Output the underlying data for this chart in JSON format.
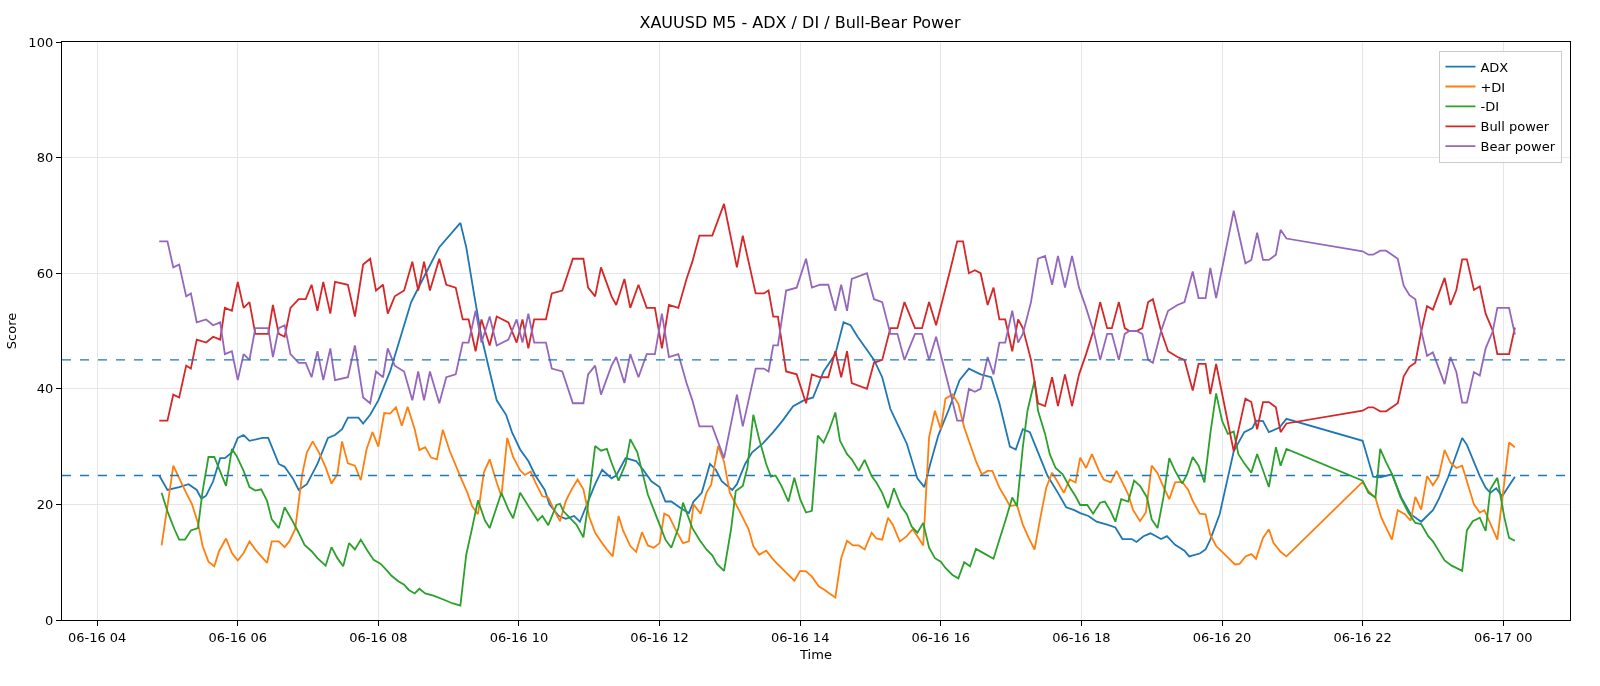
{
  "chart_data": {
    "type": "line",
    "title": "XAUUSD M5 - ADX / DI / Bull-Bear Power",
    "xlabel": "Time",
    "ylabel": "Score",
    "xlim": [
      "--06-16T03:30",
      "--06-17T00:57"
    ],
    "xticks": [
      {
        "value": "--06-16T04:00",
        "label": "06-16 04"
      },
      {
        "value": "--06-16T06:00",
        "label": "06-16 06"
      },
      {
        "value": "--06-16T08:00",
        "label": "06-16 08"
      },
      {
        "value": "--06-16T10:00",
        "label": "06-16 10"
      },
      {
        "value": "--06-16T12:00",
        "label": "06-16 12"
      },
      {
        "value": "--06-16T14:00",
        "label": "06-16 14"
      },
      {
        "value": "--06-16T16:00",
        "label": "06-16 16"
      },
      {
        "value": "--06-16T18:00",
        "label": "06-16 18"
      },
      {
        "value": "--06-16T20:00",
        "label": "06-16 20"
      },
      {
        "value": "--06-16T22:00",
        "label": "06-16 22"
      },
      {
        "value": "--06-17T00:00",
        "label": "06-17 00"
      }
    ],
    "ylim": [
      0,
      100
    ],
    "yticks": [
      0,
      20,
      40,
      60,
      80,
      100
    ],
    "grid": true,
    "legend": "top right",
    "ref_lines": [
      {
        "axis": "y",
        "value": 45,
        "color": "#1f77b4",
        "line_style": "dashed"
      },
      {
        "axis": "y",
        "value": 25,
        "color": "#1f77b4",
        "line_style": "dashed"
      }
    ],
    "x": [
      "--06-16T04:53",
      "--06-16T05:00",
      "--06-16T05:05",
      "--06-16T05:10",
      "--06-16T05:16",
      "--06-16T05:20",
      "--06-16T05:25",
      "--06-16T05:33",
      "--06-16T05:39",
      "--06-16T05:45",
      "--06-16T05:49",
      "--06-16T05:55",
      "--06-16T06:00",
      "--06-16T06:05",
      "--06-16T06:10",
      "--06-16T06:15",
      "--06-16T06:26",
      "--06-16T06:30",
      "--06-16T06:35",
      "--06-16T06:40",
      "--06-16T06:45",
      "--06-16T06:52",
      "--06-16T06:58",
      "--06-16T07:03",
      "--06-16T07:08",
      "--06-16T07:13",
      "--06-16T07:19",
      "--06-16T07:23",
      "--06-16T07:34",
      "--06-16T07:40",
      "--06-16T07:47",
      "--06-16T07:53",
      "--06-16T07:58",
      "--06-16T08:04",
      "--06-16T08:08",
      "--06-16T08:14",
      "--06-16T08:22",
      "--06-16T08:29",
      "--06-16T08:34",
      "--06-16T08:39",
      "--06-16T08:44",
      "--06-16T08:52",
      "--06-16T08:58",
      "--06-16T09:06",
      "--06-16T09:12",
      "--06-16T09:17",
      "--06-16T09:23",
      "--06-16T09:28",
      "--06-16T09:35",
      "--06-16T09:41",
      "--06-16T09:51",
      "--06-16T09:58",
      "--06-16T10:03",
      "--06-16T10:08",
      "--06-16T10:13",
      "--06-16T10:23",
      "--06-16T10:28",
      "--06-16T10:37",
      "--06-16T10:46",
      "--06-16T10:55",
      "--06-16T10:59",
      "--06-16T11:05",
      "--06-16T11:10",
      "--06-16T11:19",
      "--06-16T11:23",
      "--06-16T11:30",
      "--06-16T11:35",
      "--06-16T11:42",
      "--06-16T11:49",
      "--06-16T11:56",
      "--06-16T12:02",
      "--06-16T12:08",
      "--06-16T12:16",
      "--06-16T12:23",
      "--06-16T12:28",
      "--06-16T12:34",
      "--06-16T12:45",
      "--06-16T12:55",
      "--06-16T13:06",
      "--06-16T13:11",
      "--06-16T13:22",
      "--06-16T13:29",
      "--06-16T13:33",
      "--06-16T13:37",
      "--06-16T13:41",
      "--06-16T13:48",
      "--06-16T13:57",
      "--06-16T14:05",
      "--06-16T14:10",
      "--06-16T14:17",
      "--06-16T14:24",
      "--06-16T14:30",
      "--06-16T14:35",
      "--06-16T14:40",
      "--06-16T14:44",
      "--06-16T14:57",
      "--06-16T15:03",
      "--06-16T15:10",
      "--06-16T15:17",
      "--06-16T15:23",
      "--06-16T15:29",
      "--06-16T15:38",
      "--06-16T15:44",
      "--06-16T15:50",
      "--06-16T15:56",
      "--06-16T16:08",
      "--06-16T16:14",
      "--06-16T16:19",
      "--06-16T16:24",
      "--06-16T16:29",
      "--06-16T16:34",
      "--06-16T16:40",
      "--06-16T16:45",
      "--06-16T16:50",
      "--06-16T16:55",
      "--06-16T17:01",
      "--06-16T17:06",
      "--06-16T17:10",
      "--06-16T17:17",
      "--06-16T17:23",
      "--06-16T17:29",
      "--06-16T17:35",
      "--06-16T17:40",
      "--06-16T17:46",
      "--06-16T17:52",
      "--06-16T17:58",
      "--06-16T18:04",
      "--06-16T18:11",
      "--06-16T18:16",
      "--06-16T18:22",
      "--06-16T18:26",
      "--06-16T18:32",
      "--06-16T18:37",
      "--06-16T18:41",
      "--06-16T18:47",
      "--06-16T18:52",
      "--06-16T18:57",
      "--06-16T19:01",
      "--06-16T19:08",
      "--06-16T19:14",
      "--06-16T19:22",
      "--06-16T19:28",
      "--06-16T19:35",
      "--06-16T19:40",
      "--06-16T19:46",
      "--06-16T19:50",
      "--06-16T19:55",
      "--06-16T20:10",
      "--06-16T20:20",
      "--06-16T20:25",
      "--06-16T20:30",
      "--06-16T20:35",
      "--06-16T20:40",
      "--06-16T20:46",
      "--06-16T20:50",
      "--06-16T20:55",
      "--06-16T22:00",
      "--06-16T22:05",
      "--06-16T22:09",
      "--06-16T22:15",
      "--06-16T22:20",
      "--06-16T22:30",
      "--06-16T22:35",
      "--06-16T22:40",
      "--06-16T22:45",
      "--06-16T22:50",
      "--06-16T22:55",
      "--06-16T23:00",
      "--06-16T23:10",
      "--06-16T23:15",
      "--06-16T23:20",
      "--06-16T23:25",
      "--06-16T23:29",
      "--06-16T23:35",
      "--06-16T23:40",
      "--06-16T23:45",
      "--06-16T23:51",
      "--06-16T23:55",
      "--06-17T00:05",
      "--06-17T00:10"
    ],
    "series": [
      {
        "name": "ADX",
        "color": "#1f77b4",
        "x": [
          "--06-16T04:53",
          "--06-16T05:00",
          "--06-16T05:10",
          "--06-16T05:18",
          "--06-16T05:25",
          "--06-16T05:29",
          "--06-16T05:33",
          "--06-16T05:39",
          "--06-16T05:45",
          "--06-16T05:49",
          "--06-16T05:55",
          "--06-16T06:00",
          "--06-16T06:05",
          "--06-16T06:10",
          "--06-16T06:21",
          "--06-16T06:26",
          "--06-16T06:35",
          "--06-16T06:40",
          "--06-16T06:47",
          "--06-16T06:52",
          "--06-16T06:59",
          "--06-16T07:08",
          "--06-16T07:17",
          "--06-16T07:23",
          "--06-16T07:29",
          "--06-16T07:34",
          "--06-16T07:43",
          "--06-16T07:47",
          "--06-16T07:53",
          "--06-16T08:00",
          "--06-16T08:10",
          "--06-16T08:19",
          "--06-16T08:28",
          "--06-16T08:38",
          "--06-16T08:52",
          "--06-16T09:10",
          "--06-16T09:15",
          "--06-16T09:22",
          "--06-16T09:28",
          "--06-16T09:35",
          "--06-16T09:41",
          "--06-16T09:49",
          "--06-16T09:54",
          "--06-16T10:01",
          "--06-16T10:08",
          "--06-16T10:14",
          "--06-16T10:22",
          "--06-16T10:26",
          "--06-16T10:34",
          "--06-16T10:40",
          "--06-16T10:47",
          "--06-16T10:52",
          "--06-16T10:58",
          "--06-16T11:05",
          "--06-16T11:11",
          "--06-16T11:19",
          "--06-16T11:23",
          "--06-16T11:31",
          "--06-16T11:40",
          "--06-16T11:46",
          "--06-16T11:53",
          "--06-16T12:00",
          "--06-16T12:05",
          "--06-16T12:10",
          "--06-16T12:17",
          "--06-16T12:25",
          "--06-16T12:29",
          "--06-16T12:36",
          "--06-16T12:43",
          "--06-16T12:48",
          "--06-16T12:53",
          "--06-16T13:02",
          "--06-16T13:06",
          "--06-16T13:13",
          "--06-16T13:19",
          "--06-16T13:28",
          "--06-16T13:37",
          "--06-16T13:45",
          "--06-16T13:54",
          "--06-16T14:03",
          "--06-16T14:11",
          "--06-16T14:20",
          "--06-16T14:30",
          "--06-16T14:37",
          "--06-16T14:43",
          "--06-16T14:49",
          "--06-16T14:56",
          "--06-16T15:03",
          "--06-16T15:10",
          "--06-16T15:17",
          "--06-16T15:24",
          "--06-16T15:31",
          "--06-16T15:40",
          "--06-16T15:46",
          "--06-16T15:51",
          "--06-16T15:58",
          "--06-16T16:07",
          "--06-16T16:16",
          "--06-16T16:24",
          "--06-16T16:34",
          "--06-16T16:43",
          "--06-16T16:50",
          "--06-16T16:59",
          "--06-16T17:04",
          "--06-16T17:10",
          "--06-16T17:16",
          "--06-16T17:23",
          "--06-16T17:31",
          "--06-16T17:40",
          "--06-16T17:47",
          "--06-16T17:54",
          "--06-16T17:59",
          "--06-16T18:06",
          "--06-16T18:13",
          "--06-16T18:22",
          "--06-16T18:29",
          "--06-16T18:35",
          "--06-16T18:43",
          "--06-16T18:47",
          "--06-16T18:53",
          "--06-16T18:59",
          "--06-16T19:08",
          "--06-16T19:13",
          "--06-16T19:20",
          "--06-16T19:28",
          "--06-16T19:32",
          "--06-16T19:41",
          "--06-16T19:46",
          "--06-16T19:50",
          "--06-16T19:58",
          "--06-16T20:10",
          "--06-16T20:19",
          "--06-16T20:26",
          "--06-16T20:29",
          "--06-16T20:35",
          "--06-16T20:40",
          "--06-16T20:49",
          "--06-16T20:55",
          "--06-16T22:00",
          "--06-16T22:09",
          "--06-16T22:15",
          "--06-16T22:25",
          "--06-16T22:33",
          "--06-16T22:41",
          "--06-16T22:50",
          "--06-16T23:00",
          "--06-16T23:05",
          "--06-16T23:13",
          "--06-16T23:25",
          "--06-16T23:29",
          "--06-16T23:40",
          "--06-16T23:45",
          "--06-16T23:49",
          "--06-16T23:54",
          "--06-16T23:59",
          "--06-17T00:10"
        ],
        "values": [
          25,
          22.5,
          23,
          23.5,
          22.5,
          21,
          21.5,
          24,
          28,
          28,
          29,
          31.5,
          32,
          31,
          31.5,
          31.5,
          27,
          26.5,
          24.5,
          22.5,
          23.5,
          27,
          31.5,
          32,
          33,
          35,
          35,
          34,
          35.5,
          38,
          43,
          49,
          55,
          59,
          64.5,
          68.7,
          64.5,
          56,
          49,
          43,
          38,
          35.5,
          32.5,
          29.5,
          27.5,
          25,
          22.5,
          20,
          18,
          17.5,
          18,
          17,
          20,
          23.5,
          26,
          24.5,
          25,
          28,
          27.5,
          26,
          24,
          23,
          20.5,
          20.5,
          19.5,
          18.5,
          20.5,
          22,
          27,
          26,
          24,
          22.5,
          23.5,
          27,
          29,
          30.5,
          32.5,
          34.5,
          37,
          38,
          38.5,
          43,
          46,
          51.5,
          51,
          49,
          47,
          45,
          42,
          36.5,
          33.5,
          30.5,
          24.5,
          23,
          27,
          32,
          36.5,
          41.5,
          43.5,
          42.5,
          42,
          37.5,
          30,
          29.5,
          33,
          32.5,
          29,
          25,
          22,
          19.5,
          19,
          18.5,
          18,
          17,
          16.5,
          16,
          14,
          14,
          13.5,
          14.5,
          15,
          14,
          14.5,
          13,
          12,
          11,
          11.5,
          12.2,
          13.9,
          18.3,
          29.2,
          32.5,
          33.2,
          34.5,
          34.4,
          32.5,
          33.3,
          34.8,
          31,
          24.8,
          24.7,
          25.2,
          21.2,
          18.3,
          17,
          19,
          20.9,
          24.7,
          31.5,
          30.3,
          24.9,
          22.9,
          22,
          22.8,
          21.4,
          24.8
        ]
      },
      {
        "name": "+DI",
        "color": "#ff7f0e",
        "x": [
          "--06-16T04:55",
          "--06-16T05:00",
          "--06-16T05:05",
          "--06-16T05:11",
          "--06-16T05:16",
          "--06-16T05:21",
          "--06-16T05:26",
          "--06-16T05:30",
          "--06-16T05:35",
          "--06-16T05:40",
          "--06-16T05:44",
          "--06-16T05:50",
          "--06-16T05:55",
          "--06-16T06:00",
          "--06-16T06:05",
          "--06-16T06:10",
          "--06-16T06:15",
          "--06-16T06:20",
          "--06-16T06:25",
          "--06-16T06:29",
          "--06-16T06:35",
          "--06-16T06:40",
          "--06-16T06:44",
          "--06-16T06:49",
          "--06-16T06:55",
          "--06-16T06:59",
          "--06-16T07:04",
          "--06-16T07:10",
          "--06-16T07:15",
          "--06-16T07:20",
          "--06-16T07:25",
          "--06-16T07:29",
          "--06-16T07:34",
          "--06-16T07:40",
          "--06-16T07:45",
          "--06-16T07:50",
          "--06-16T07:55",
          "--06-16T08:00",
          "--06-16T08:05",
          "--06-16T08:10",
          "--06-16T08:15",
          "--06-16T08:20",
          "--06-16T08:25",
          "--06-16T08:31",
          "--06-16T08:35",
          "--06-16T08:40",
          "--06-16T08:45",
          "--06-16T08:50",
          "--06-16T08:55",
          "--06-16T09:01",
          "--06-16T09:10",
          "--06-16T09:16",
          "--06-16T09:20",
          "--06-16T09:25",
          "--06-16T09:30",
          "--06-16T09:35",
          "--06-16T09:41",
          "--06-16T09:45",
          "--06-16T09:50",
          "--06-16T09:55",
          "--06-16T10:01",
          "--06-16T10:05",
          "--06-16T10:10",
          "--06-16T10:14",
          "--06-16T10:20",
          "--06-16T10:25",
          "--06-16T10:30",
          "--06-16T10:35",
          "--06-16T10:40",
          "--06-16T10:45",
          "--06-16T10:50",
          "--06-16T10:55",
          "--06-16T11:00",
          "--06-16T11:05",
          "--06-16T11:11",
          "--06-16T11:15",
          "--06-16T11:20",
          "--06-16T11:25",
          "--06-16T11:29",
          "--06-16T11:35",
          "--06-16T11:40",
          "--06-16T11:45",
          "--06-16T11:50",
          "--06-16T11:55",
          "--06-16T12:00",
          "--06-16T12:04",
          "--06-16T12:08",
          "--06-16T12:14",
          "--06-16T12:20",
          "--06-16T12:25",
          "--06-16T12:29",
          "--06-16T12:35",
          "--06-16T12:40",
          "--06-16T12:44",
          "--06-16T12:50",
          "--06-16T12:55",
          "--06-16T13:00",
          "--06-16T13:05",
          "--06-16T13:11",
          "--06-16T13:16",
          "--06-16T13:20",
          "--06-16T13:25",
          "--06-16T13:31",
          "--06-16T13:36",
          "--06-16T13:41",
          "--06-16T13:47",
          "--06-16T13:55",
          "--06-16T14:00",
          "--06-16T14:05",
          "--06-16T14:10",
          "--06-16T14:16",
          "--06-16T14:21",
          "--06-16T14:25",
          "--06-16T14:30",
          "--06-16T14:35",
          "--06-16T14:40",
          "--06-16T14:45",
          "--06-16T14:50",
          "--06-16T14:55",
          "--06-16T15:01",
          "--06-16T15:05",
          "--06-16T15:10",
          "--06-16T15:15",
          "--06-16T15:19",
          "--06-16T15:25",
          "--06-16T15:31",
          "--06-16T15:36",
          "--06-16T15:41",
          "--06-16T15:45",
          "--06-16T15:50",
          "--06-16T15:55",
          "--06-16T16:00",
          "--06-16T16:04",
          "--06-16T16:10",
          "--06-16T16:15",
          "--06-16T16:20",
          "--06-16T16:25",
          "--06-16T16:30",
          "--06-16T16:35",
          "--06-16T16:40",
          "--06-16T16:44",
          "--06-16T16:50",
          "--06-16T16:55",
          "--06-16T16:59",
          "--06-16T17:05",
          "--06-16T17:10",
          "--06-16T17:15",
          "--06-16T17:20",
          "--06-16T17:25",
          "--06-16T17:30",
          "--06-16T17:35",
          "--06-16T17:40",
          "--06-16T17:45",
          "--06-16T17:50",
          "--06-16T17:55",
          "--06-16T17:59",
          "--06-16T18:04",
          "--06-16T18:09",
          "--06-16T18:15",
          "--06-16T18:19",
          "--06-16T18:25",
          "--06-16T18:30",
          "--06-16T18:35",
          "--06-16T18:40",
          "--06-16T18:44",
          "--06-16T18:50",
          "--06-16T18:55",
          "--06-16T19:00",
          "--06-16T19:05",
          "--06-16T19:09",
          "--06-16T19:15",
          "--06-16T19:20",
          "--06-16T19:26",
          "--06-16T19:31",
          "--06-16T19:35",
          "--06-16T19:41",
          "--06-16T19:46",
          "--06-16T19:50",
          "--06-16T19:55",
          "--06-16T20:01",
          "--06-16T20:06",
          "--06-16T20:11",
          "--06-16T20:15",
          "--06-16T20:20",
          "--06-16T20:25",
          "--06-16T20:29",
          "--06-16T20:35",
          "--06-16T20:40",
          "--06-16T20:44",
          "--06-16T20:50",
          "--06-16T20:55",
          "--06-16T22:00",
          "--06-16T22:05",
          "--06-16T22:11",
          "--06-16T22:16",
          "--06-16T22:25",
          "--06-16T22:30",
          "--06-16T22:36",
          "--06-16T22:41",
          "--06-16T22:45",
          "--06-16T22:50",
          "--06-16T22:55",
          "--06-16T23:00",
          "--06-16T23:05",
          "--06-16T23:10",
          "--06-16T23:15",
          "--06-16T23:20",
          "--06-16T23:25",
          "--06-16T23:35",
          "--06-16T23:40",
          "--06-16T23:44",
          "--06-16T23:55",
          "--06-17T00:05",
          "--06-17T00:10"
        ],
        "values": [
          12.9,
          19.7,
          26.7,
          24.1,
          22.0,
          20.0,
          16.8,
          12.8,
          10.1,
          9.3,
          11.9,
          14.1,
          11.6,
          10.3,
          11.6,
          13.6,
          12.2,
          11.0,
          9.9,
          13.6,
          13.6,
          12.6,
          13.6,
          15.7,
          25.2,
          29.0,
          30.9,
          28.7,
          26.4,
          23.6,
          25.2,
          30.9,
          27.1,
          26.7,
          24.2,
          29.6,
          32.5,
          30.0,
          35.8,
          35.7,
          36.8,
          33.6,
          36.9,
          33.0,
          29.4,
          29.9,
          28.1,
          27.8,
          32.9,
          29.2,
          24.8,
          22.0,
          19.7,
          18.3,
          25.5,
          27.8,
          23.8,
          21.4,
          31.5,
          28.2,
          25.9,
          25.1,
          25.7,
          23.8,
          21.4,
          21.2,
          19.0,
          17.1,
          20.6,
          22.6,
          24.3,
          22.6,
          17.8,
          15.1,
          13.3,
          12.2,
          11.0,
          18.0,
          15.4,
          12.8,
          11.8,
          15.2,
          12.9,
          12.5,
          13.3,
          18.4,
          18.0,
          15.5,
          13.3,
          13.6,
          20.0,
          18.4,
          22.0,
          23.4,
          30.1,
          27.4,
          22.0,
          20.1,
          17.7,
          15.7,
          12.8,
          11.3,
          12.0,
          10.7,
          9.6,
          8.4,
          6.8,
          8.5,
          8.4,
          7.5,
          5.8,
          5.2,
          4.6,
          3.9,
          10.7,
          13.7,
          12.9,
          12.9,
          12.2,
          15.1,
          14.1,
          13.9,
          17.7,
          16.5,
          13.6,
          14.5,
          15.7,
          14.2,
          12.9,
          31.6,
          36.2,
          33.0,
          38.3,
          39.0,
          37.4,
          33.3,
          30.4,
          27.5,
          25.2,
          25.8,
          25.8,
          22.9,
          21.2,
          19.7,
          19.9,
          16.5,
          14.2,
          12.2,
          17.7,
          22.9,
          25.5,
          23.8,
          22.0,
          24.3,
          23.8,
          28.1,
          26.3,
          28.7,
          25.8,
          24.3,
          23.8,
          25.8,
          23.8,
          21.7,
          19.1,
          17.1,
          18.6,
          26.7,
          25.4,
          23.5,
          20.9,
          23.8,
          23.9,
          22.6,
          20.6,
          18.4,
          18.3,
          14.7,
          12.8,
          11.6,
          10.6,
          9.6,
          9.7,
          11.0,
          11.4,
          10.6,
          14.2,
          15.7,
          13.3,
          11.8,
          11.0,
          23.9,
          22.3,
          21.1,
          17.7,
          13.9,
          19.0,
          18.3,
          17.2,
          21.3,
          19.1,
          24.9,
          23.3,
          24.9,
          29.4,
          27.2,
          26.3,
          26.7,
          20.0,
          18.6,
          19.0,
          13.9,
          30.7,
          29.9
        ]
      },
      {
        "name": "-DI",
        "color": "#2ca02c",
        "x": [
          "--06-16T04:55",
          "--06-16T05:00",
          "--06-16T05:06",
          "--06-16T05:10",
          "--06-16T05:15",
          "--06-16T05:20",
          "--06-16T05:26",
          "--06-16T05:30",
          "--06-16T05:35",
          "--06-16T05:40",
          "--06-16T05:46",
          "--06-16T05:50",
          "--06-16T05:55",
          "--06-16T05:59",
          "--06-16T06:05",
          "--06-16T06:10",
          "--06-16T06:15",
          "--06-16T06:20",
          "--06-16T06:25",
          "--06-16T06:29",
          "--06-16T06:35",
          "--06-16T06:40",
          "--06-16T06:46",
          "--06-16T06:52",
          "--06-16T06:57",
          "--06-16T07:03",
          "--06-16T07:08",
          "--06-16T07:15",
          "--06-16T07:20",
          "--06-16T07:25",
          "--06-16T07:30",
          "--06-16T07:35",
          "--06-16T07:40",
          "--06-16T07:45",
          "--06-16T07:51",
          "--06-16T07:56",
          "--06-16T08:02",
          "--06-16T08:08",
          "--06-16T08:11",
          "--06-16T08:17",
          "--06-16T08:22",
          "--06-16T08:26",
          "--06-16T08:31",
          "--06-16T08:35",
          "--06-16T08:40",
          "--06-16T08:47",
          "--06-16T08:56",
          "--06-16T09:03",
          "--06-16T09:10",
          "--06-16T09:15",
          "--06-16T09:20",
          "--06-16T09:25",
          "--06-16T09:31",
          "--06-16T09:35",
          "--06-16T09:45",
          "--06-16T09:51",
          "--06-16T09:55",
          "--06-16T10:01",
          "--06-16T10:09",
          "--06-16T10:16",
          "--06-16T10:20",
          "--06-16T10:25",
          "--06-16T10:32",
          "--06-16T10:35",
          "--06-16T10:38",
          "--06-16T10:49",
          "--06-16T10:55",
          "--06-16T10:59",
          "--06-16T11:05",
          "--06-16T11:10",
          "--06-16T11:15",
          "--06-16T11:19",
          "--06-16T11:25",
          "--06-16T11:31",
          "--06-16T11:35",
          "--06-16T11:41",
          "--06-16T11:45",
          "--06-16T11:50",
          "--06-16T11:55",
          "--06-16T12:00",
          "--06-16T12:05",
          "--06-16T12:10",
          "--06-16T12:16",
          "--06-16T12:20",
          "--06-16T12:28",
          "--06-16T12:34",
          "--06-16T12:40",
          "--06-16T12:45",
          "--06-16T12:49",
          "--06-16T12:55",
          "--06-16T13:01",
          "--06-16T13:05",
          "--06-16T13:11",
          "--06-16T13:15",
          "--06-16T13:20",
          "--06-16T13:25",
          "--06-16T13:31",
          "--06-16T13:35",
          "--06-16T13:39",
          "--06-16T13:44",
          "--06-16T13:50",
          "--06-16T13:55",
          "--06-16T14:00",
          "--06-16T14:05",
          "--06-16T14:10",
          "--06-16T14:15",
          "--06-16T14:20",
          "--06-16T14:25",
          "--06-16T14:30",
          "--06-16T14:34",
          "--06-16T14:40",
          "--06-16T14:44",
          "--06-16T14:50",
          "--06-16T14:55",
          "--06-16T15:01",
          "--06-16T15:05",
          "--06-16T15:10",
          "--06-16T15:15",
          "--06-16T15:20",
          "--06-16T15:26",
          "--06-16T15:31",
          "--06-16T15:35",
          "--06-16T15:40",
          "--06-16T15:45",
          "--06-16T15:50",
          "--06-16T15:55",
          "--06-16T16:00",
          "--06-16T16:04",
          "--06-16T16:10",
          "--06-16T16:15",
          "--06-16T16:20",
          "--06-16T16:25",
          "--06-16T16:30",
          "--06-16T16:38",
          "--06-16T16:45",
          "--06-16T16:50",
          "--06-16T16:55",
          "--06-16T17:01",
          "--06-16T17:05",
          "--06-16T17:10",
          "--06-16T17:14",
          "--06-16T17:20",
          "--06-16T17:23",
          "--06-16T17:29",
          "--06-16T17:33",
          "--06-16T17:38",
          "--06-16T17:44",
          "--06-16T17:50",
          "--06-16T17:55",
          "--06-16T17:59",
          "--06-16T18:05",
          "--06-16T18:10",
          "--06-16T18:16",
          "--06-16T18:20",
          "--06-16T18:25",
          "--06-16T18:29",
          "--06-16T18:34",
          "--06-16T18:40",
          "--06-16T18:45",
          "--06-16T18:50",
          "--06-16T18:56",
          "--06-16T19:00",
          "--06-16T19:05",
          "--06-16T19:10",
          "--06-16T19:15",
          "--06-16T19:20",
          "--06-16T19:26",
          "--06-16T19:30",
          "--06-16T19:35",
          "--06-16T19:40",
          "--06-16T19:45",
          "--06-16T19:50",
          "--06-16T19:55",
          "--06-16T20:00",
          "--06-16T20:05",
          "--06-16T20:10",
          "--06-16T20:14",
          "--06-16T20:19",
          "--06-16T20:25",
          "--06-16T20:30",
          "--06-16T20:35",
          "--06-16T20:40",
          "--06-16T20:46",
          "--06-16T20:50",
          "--06-16T20:55",
          "--06-16T22:00",
          "--06-16T22:05",
          "--06-16T22:11",
          "--06-16T22:15",
          "--06-16T22:20",
          "--06-16T22:26",
          "--06-16T22:32",
          "--06-16T22:39",
          "--06-16T22:45",
          "--06-16T22:50",
          "--06-16T22:56",
          "--06-16T23:00",
          "--06-16T23:10",
          "--06-16T23:16",
          "--06-16T23:25",
          "--06-16T23:29",
          "--06-16T23:34",
          "--06-16T23:40",
          "--06-16T23:45",
          "--06-16T23:49",
          "--06-16T23:55",
          "--06-17T00:01",
          "--06-17T00:05",
          "--06-17T00:10"
        ],
        "values": [
          22.0,
          18.8,
          15.7,
          13.9,
          13.9,
          15.5,
          15.9,
          22.3,
          28.2,
          28.2,
          25.2,
          23.2,
          29.6,
          28.4,
          25.8,
          23.0,
          22.4,
          22.6,
          20.6,
          17.4,
          15.9,
          19.5,
          17.4,
          15.1,
          13.0,
          11.9,
          10.7,
          9.4,
          12.6,
          10.7,
          9.3,
          13.3,
          12.2,
          13.9,
          11.9,
          10.4,
          9.7,
          8.4,
          7.7,
          6.7,
          6.1,
          5.2,
          4.6,
          5.4,
          4.6,
          4.2,
          3.5,
          2.9,
          2.5,
          11.3,
          15.9,
          20.7,
          17.2,
          15.9,
          22.0,
          19.1,
          17.6,
          22.0,
          19.4,
          17.2,
          18.0,
          16.4,
          19.9,
          20.1,
          18.8,
          16.5,
          14.3,
          20.0,
          30.1,
          29.3,
          29.6,
          27.2,
          24.1,
          27.0,
          31.3,
          29.0,
          25.8,
          21.7,
          19.1,
          16.5,
          13.9,
          12.5,
          15.9,
          20.3,
          15.9,
          13.9,
          12.2,
          11.2,
          9.7,
          8.5,
          15.7,
          22.3,
          23.2,
          26.4,
          35.5,
          31.3,
          27.0,
          24.8,
          25.0,
          23.2,
          20.5,
          24.6,
          20.9,
          18.6,
          18.9,
          31.9,
          30.7,
          33.0,
          35.9,
          31.0,
          28.7,
          27.8,
          25.8,
          27.7,
          24.9,
          23.8,
          22.0,
          19.4,
          22.8,
          19.7,
          18.3,
          16.2,
          15.1,
          16.8,
          12.5,
          10.7,
          10.1,
          9.0,
          7.8,
          7.2,
          10.0,
          9.3,
          12.3,
          11.4,
          10.6,
          13.9,
          17.1,
          21.2,
          19.7,
          29.9,
          36.2,
          41.4,
          36.2,
          32.2,
          28.7,
          26.3,
          25.2,
          23.0,
          21.4,
          19.9,
          19.9,
          18.4,
          20.3,
          20.5,
          18.8,
          17.0,
          20.9,
          20.5,
          24.1,
          23.2,
          21.2,
          17.4,
          15.9,
          21.2,
          28.0,
          25.8,
          23.6,
          25.1,
          28.2,
          26.7,
          23.8,
          32.2,
          39.2,
          34.5,
          32.2,
          32.6,
          28.7,
          27.1,
          25.5,
          28.7,
          25.9,
          23.0,
          29.9,
          26.7,
          29.6,
          24.1,
          22.0,
          21.2,
          29.6,
          27.3,
          24.9,
          21.4,
          18.6,
          16.8,
          16.6,
          14.5,
          13.6,
          10.3,
          9.4,
          8.5,
          15.5,
          17.1,
          17.7,
          15.4,
          22.6,
          24.6,
          17.7,
          14.2,
          13.7
        ]
      },
      {
        "name": "Bull power",
        "color": "#d62728",
        "values": [
          34.5,
          34.5,
          39,
          38.5,
          44,
          43.5,
          48.5,
          48,
          49,
          48.5,
          54,
          53.5,
          58.5,
          54,
          55,
          49.5,
          49.5,
          54.5,
          49.5,
          49,
          54,
          55.5,
          55.5,
          58,
          53.5,
          58.5,
          53,
          58.5,
          58,
          52.5,
          61.5,
          62.5,
          57,
          58,
          53,
          56,
          57,
          62,
          57,
          62,
          57,
          62.5,
          58,
          57.5,
          52,
          52,
          46.5,
          52,
          47.5,
          52.5,
          51.5,
          48,
          52,
          47,
          52,
          52,
          56.5,
          57,
          62.5,
          62.5,
          57.5,
          56,
          61,
          56,
          54.5,
          59,
          54,
          58,
          54,
          54,
          47,
          54.5,
          54,
          59,
          62,
          66.5,
          66.5,
          72,
          61,
          66.5,
          56.5,
          56.5,
          57,
          52.5,
          52.5,
          43,
          42.5,
          37.5,
          42.5,
          42,
          42,
          46.5,
          42,
          46.5,
          41,
          40,
          44.5,
          45,
          50.5,
          50.5,
          55,
          50.5,
          50.5,
          55,
          51,
          60.5,
          65.5,
          65.5,
          60,
          60.5,
          60,
          54.5,
          57.5,
          52,
          52,
          46.5,
          52,
          50.5,
          45,
          37.5,
          37,
          42,
          37,
          42.5,
          37,
          42.5,
          46,
          50.5,
          55,
          50.5,
          50.5,
          55,
          50.5,
          50,
          50,
          50.5,
          55,
          55.5,
          50,
          46.5,
          45.5,
          45,
          39.7,
          44.3,
          44.3,
          39.1,
          44.3,
          29.2,
          38.3,
          37.7,
          33,
          37.7,
          37.7,
          36.8,
          32.5,
          34,
          36.2,
          36.8,
          36.8,
          36.1,
          36.1,
          37.5,
          42.1,
          43.8,
          44.5,
          49.9,
          54.3,
          53.7,
          59.2,
          54.5,
          57.1,
          62.4,
          62.4,
          57.1,
          57.7,
          53,
          50.1,
          46,
          46,
          50.6
        ]
      },
      {
        "name": "Bear power",
        "color": "#9467bd",
        "values": [
          65.5,
          65.5,
          61,
          61.5,
          56,
          56.5,
          51.5,
          52,
          51,
          51.5,
          46,
          46.5,
          41.5,
          46,
          45,
          50.5,
          50.5,
          45.5,
          50.5,
          51,
          46,
          44.5,
          44.5,
          42,
          46.5,
          41.5,
          47,
          41.5,
          42,
          47.5,
          38.5,
          37.5,
          43,
          42,
          47,
          44,
          43,
          38,
          43,
          38,
          43,
          37.5,
          42,
          42.5,
          48,
          48,
          53.5,
          48,
          52.5,
          47.5,
          48.5,
          52,
          48,
          53,
          48,
          48,
          43.5,
          43,
          37.5,
          37.5,
          42.5,
          44,
          39,
          44,
          45.5,
          41,
          46,
          42,
          46,
          46,
          53,
          45.5,
          46,
          41,
          38,
          33.5,
          33.5,
          28,
          39,
          33.5,
          43.5,
          43.5,
          43,
          47.5,
          47.5,
          57,
          57.5,
          62.5,
          57.5,
          58,
          58,
          53.5,
          58,
          53.5,
          59,
          60,
          55.5,
          55,
          49.5,
          49.5,
          45,
          49.5,
          49.5,
          45,
          49,
          39.5,
          34.5,
          34.5,
          40,
          39.5,
          40,
          45.5,
          42.5,
          48,
          48,
          53.5,
          48,
          49.5,
          55,
          62.5,
          63,
          58,
          63,
          57.5,
          63,
          57.5,
          54,
          49.5,
          45,
          49.5,
          49.5,
          45,
          49.5,
          50,
          50,
          49.5,
          45,
          44.5,
          50,
          53.5,
          54.5,
          55,
          60.3,
          55.7,
          55.7,
          60.9,
          55.7,
          70.8,
          61.7,
          62.3,
          67,
          62.3,
          62.3,
          63.2,
          67.5,
          66,
          63.8,
          63.2,
          63.2,
          63.9,
          63.9,
          62.5,
          57.9,
          56.2,
          55.5,
          50.1,
          45.7,
          46.3,
          40.8,
          45.5,
          42.9,
          37.6,
          37.6,
          42.9,
          42.3,
          47,
          49.9,
          54,
          54,
          49.4
        ]
      }
    ]
  }
}
